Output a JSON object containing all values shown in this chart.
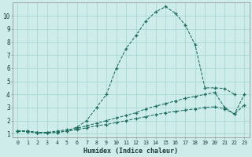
{
  "xlabel": "Humidex (Indice chaleur)",
  "bg_color": "#ceecea",
  "grid_color": "#a8d8d4",
  "line_color": "#1a6b5e",
  "xlim": [
    -0.5,
    23.5
  ],
  "ylim": [
    0.7,
    11.0
  ],
  "yticks": [
    1,
    2,
    3,
    4,
    5,
    6,
    7,
    8,
    9,
    10
  ],
  "xticks": [
    0,
    1,
    2,
    3,
    4,
    5,
    6,
    7,
    8,
    9,
    10,
    11,
    12,
    13,
    14,
    15,
    16,
    17,
    18,
    19,
    20,
    21,
    22,
    23
  ],
  "series_bell_x": [
    0,
    1,
    2,
    3,
    4,
    5,
    6,
    7,
    8,
    9,
    10,
    11,
    12,
    13,
    14,
    15,
    16,
    17,
    18,
    19,
    20,
    21,
    22
  ],
  "series_bell_y": [
    1.2,
    1.2,
    1.1,
    1.1,
    1.1,
    1.2,
    1.5,
    2.0,
    3.0,
    4.0,
    6.0,
    7.5,
    8.5,
    9.6,
    10.3,
    10.7,
    10.2,
    9.3,
    7.8,
    4.5,
    4.5,
    4.45,
    4.0
  ],
  "series_upper_x": [
    0,
    1,
    2,
    3,
    4,
    5,
    6,
    7,
    8,
    9,
    10,
    11,
    12,
    13,
    14,
    15,
    16,
    17,
    18,
    19,
    20,
    21,
    22,
    23
  ],
  "series_upper_y": [
    1.2,
    1.2,
    1.1,
    1.1,
    1.2,
    1.3,
    1.4,
    1.6,
    1.8,
    2.0,
    2.2,
    2.4,
    2.6,
    2.9,
    3.1,
    3.3,
    3.5,
    3.7,
    3.85,
    4.0,
    4.15,
    3.0,
    2.5,
    4.0
  ],
  "series_lower_x": [
    0,
    1,
    2,
    3,
    4,
    5,
    6,
    7,
    8,
    9,
    10,
    11,
    12,
    13,
    14,
    15,
    16,
    17,
    18,
    19,
    20,
    21,
    22,
    23
  ],
  "series_lower_y": [
    1.2,
    1.15,
    1.05,
    1.05,
    1.1,
    1.2,
    1.3,
    1.45,
    1.6,
    1.7,
    1.85,
    2.0,
    2.15,
    2.3,
    2.45,
    2.6,
    2.7,
    2.8,
    2.9,
    3.0,
    3.05,
    2.9,
    2.5,
    3.2
  ]
}
